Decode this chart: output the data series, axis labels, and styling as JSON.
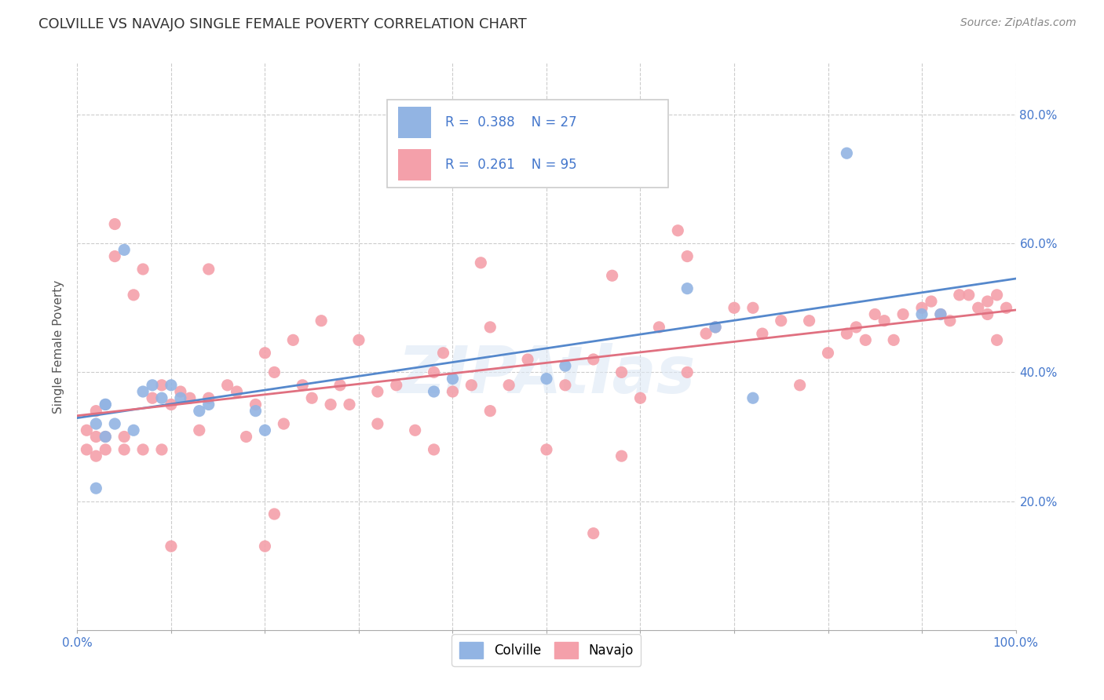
{
  "title": "COLVILLE VS NAVAJO SINGLE FEMALE POVERTY CORRELATION CHART",
  "source": "Source: ZipAtlas.com",
  "ylabel": "Single Female Poverty",
  "xlim": [
    0.0,
    1.0
  ],
  "ylim": [
    0.0,
    0.88
  ],
  "x_ticks": [
    0.0,
    0.1,
    0.2,
    0.3,
    0.4,
    0.5,
    0.6,
    0.7,
    0.8,
    0.9,
    1.0
  ],
  "y_ticks": [
    0.2,
    0.4,
    0.6,
    0.8
  ],
  "colville_R": 0.388,
  "colville_N": 27,
  "navajo_R": 0.261,
  "navajo_N": 95,
  "colville_color": "#92b4e3",
  "navajo_color": "#f4a0aa",
  "colville_line_color": "#5588cc",
  "navajo_line_color": "#e07080",
  "legend_text_color": "#4477cc",
  "background_color": "#ffffff",
  "grid_color": "#cccccc",
  "watermark_text": "ZIPAtlas",
  "colville_x": [
    0.02,
    0.02,
    0.03,
    0.03,
    0.03,
    0.04,
    0.05,
    0.06,
    0.07,
    0.08,
    0.09,
    0.1,
    0.11,
    0.13,
    0.14,
    0.19,
    0.2,
    0.38,
    0.4,
    0.5,
    0.52,
    0.65,
    0.68,
    0.72,
    0.82,
    0.9,
    0.92
  ],
  "colville_y": [
    0.22,
    0.32,
    0.3,
    0.35,
    0.35,
    0.32,
    0.59,
    0.31,
    0.37,
    0.38,
    0.36,
    0.38,
    0.36,
    0.34,
    0.35,
    0.34,
    0.31,
    0.37,
    0.39,
    0.39,
    0.41,
    0.53,
    0.47,
    0.36,
    0.74,
    0.49,
    0.49
  ],
  "navajo_x": [
    0.01,
    0.01,
    0.02,
    0.02,
    0.02,
    0.03,
    0.03,
    0.04,
    0.04,
    0.05,
    0.05,
    0.06,
    0.07,
    0.07,
    0.08,
    0.09,
    0.09,
    0.1,
    0.11,
    0.12,
    0.13,
    0.14,
    0.14,
    0.16,
    0.17,
    0.18,
    0.19,
    0.2,
    0.2,
    0.21,
    0.22,
    0.23,
    0.24,
    0.25,
    0.26,
    0.27,
    0.28,
    0.29,
    0.3,
    0.32,
    0.34,
    0.36,
    0.38,
    0.38,
    0.39,
    0.4,
    0.42,
    0.43,
    0.44,
    0.46,
    0.48,
    0.5,
    0.52,
    0.55,
    0.55,
    0.57,
    0.58,
    0.6,
    0.62,
    0.64,
    0.65,
    0.65,
    0.67,
    0.68,
    0.7,
    0.72,
    0.73,
    0.75,
    0.77,
    0.78,
    0.8,
    0.82,
    0.83,
    0.84,
    0.85,
    0.86,
    0.87,
    0.88,
    0.9,
    0.91,
    0.92,
    0.93,
    0.94,
    0.95,
    0.96,
    0.97,
    0.97,
    0.98,
    0.98,
    0.99,
    0.1,
    0.21,
    0.32,
    0.44,
    0.58
  ],
  "navajo_y": [
    0.28,
    0.31,
    0.27,
    0.3,
    0.34,
    0.28,
    0.3,
    0.58,
    0.63,
    0.28,
    0.3,
    0.52,
    0.56,
    0.28,
    0.36,
    0.28,
    0.38,
    0.35,
    0.37,
    0.36,
    0.31,
    0.36,
    0.56,
    0.38,
    0.37,
    0.3,
    0.35,
    0.43,
    0.13,
    0.4,
    0.32,
    0.45,
    0.38,
    0.36,
    0.48,
    0.35,
    0.38,
    0.35,
    0.45,
    0.37,
    0.38,
    0.31,
    0.4,
    0.28,
    0.43,
    0.37,
    0.38,
    0.57,
    0.47,
    0.38,
    0.42,
    0.28,
    0.38,
    0.15,
    0.42,
    0.55,
    0.4,
    0.36,
    0.47,
    0.62,
    0.4,
    0.58,
    0.46,
    0.47,
    0.5,
    0.5,
    0.46,
    0.48,
    0.38,
    0.48,
    0.43,
    0.46,
    0.47,
    0.45,
    0.49,
    0.48,
    0.45,
    0.49,
    0.5,
    0.51,
    0.49,
    0.48,
    0.52,
    0.52,
    0.5,
    0.49,
    0.51,
    0.52,
    0.45,
    0.5,
    0.13,
    0.18,
    0.32,
    0.34,
    0.27
  ]
}
